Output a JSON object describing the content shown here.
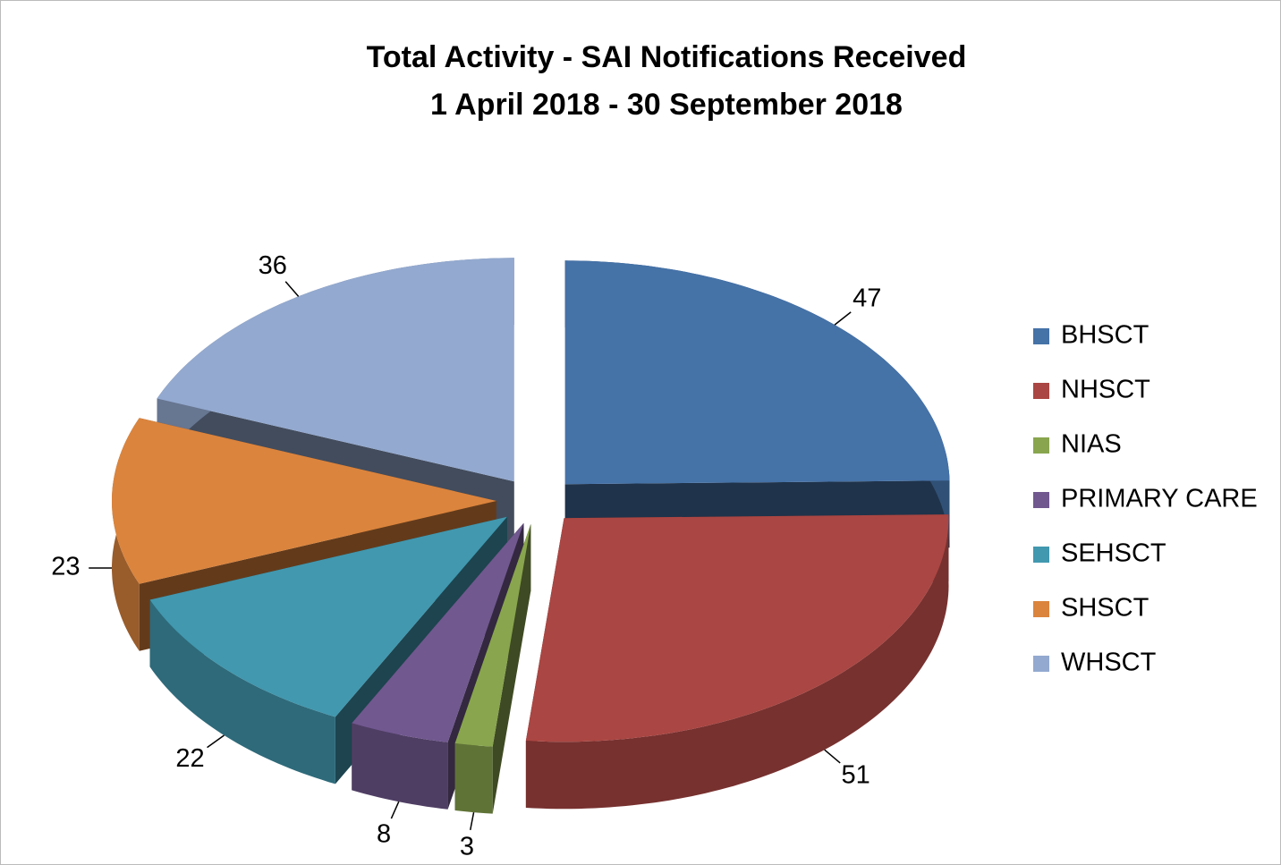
{
  "chart_data": {
    "type": "pie",
    "title": "Total Activity - SAI Notifications Received",
    "subtitle": "1 April 2018 - 30 September 2018",
    "categories": [
      "BHSCT",
      "NHSCT",
      "NIAS",
      "PRIMARY CARE",
      "SEHSCT",
      "SHSCT",
      "WHSCT"
    ],
    "values": [
      47,
      51,
      3,
      8,
      22,
      23,
      36
    ],
    "colors": [
      "#4572a7",
      "#aa4643",
      "#89a54e",
      "#71588f",
      "#4198af",
      "#db843d",
      "#93a9cf"
    ],
    "legend": "right"
  }
}
